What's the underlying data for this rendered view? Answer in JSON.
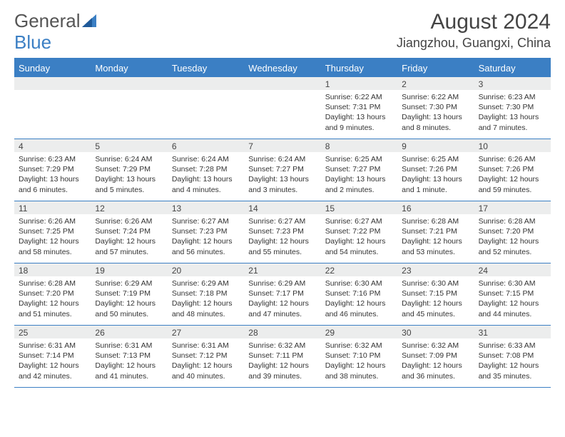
{
  "logo": {
    "text1": "General",
    "text2": "Blue"
  },
  "title": "August 2024",
  "location": "Jiangzhou, Guangxi, China",
  "dayNames": [
    "Sunday",
    "Monday",
    "Tuesday",
    "Wednesday",
    "Thursday",
    "Friday",
    "Saturday"
  ],
  "colors": {
    "headerBlue": "#3b7fc4",
    "rowGray": "#eceded",
    "text": "#333333",
    "background": "#ffffff"
  },
  "weeks": [
    [
      {
        "num": "",
        "lines": []
      },
      {
        "num": "",
        "lines": []
      },
      {
        "num": "",
        "lines": []
      },
      {
        "num": "",
        "lines": []
      },
      {
        "num": "1",
        "lines": [
          "Sunrise: 6:22 AM",
          "Sunset: 7:31 PM",
          "Daylight: 13 hours and 9 minutes."
        ]
      },
      {
        "num": "2",
        "lines": [
          "Sunrise: 6:22 AM",
          "Sunset: 7:30 PM",
          "Daylight: 13 hours and 8 minutes."
        ]
      },
      {
        "num": "3",
        "lines": [
          "Sunrise: 6:23 AM",
          "Sunset: 7:30 PM",
          "Daylight: 13 hours and 7 minutes."
        ]
      }
    ],
    [
      {
        "num": "4",
        "lines": [
          "Sunrise: 6:23 AM",
          "Sunset: 7:29 PM",
          "Daylight: 13 hours and 6 minutes."
        ]
      },
      {
        "num": "5",
        "lines": [
          "Sunrise: 6:24 AM",
          "Sunset: 7:29 PM",
          "Daylight: 13 hours and 5 minutes."
        ]
      },
      {
        "num": "6",
        "lines": [
          "Sunrise: 6:24 AM",
          "Sunset: 7:28 PM",
          "Daylight: 13 hours and 4 minutes."
        ]
      },
      {
        "num": "7",
        "lines": [
          "Sunrise: 6:24 AM",
          "Sunset: 7:27 PM",
          "Daylight: 13 hours and 3 minutes."
        ]
      },
      {
        "num": "8",
        "lines": [
          "Sunrise: 6:25 AM",
          "Sunset: 7:27 PM",
          "Daylight: 13 hours and 2 minutes."
        ]
      },
      {
        "num": "9",
        "lines": [
          "Sunrise: 6:25 AM",
          "Sunset: 7:26 PM",
          "Daylight: 13 hours and 1 minute."
        ]
      },
      {
        "num": "10",
        "lines": [
          "Sunrise: 6:26 AM",
          "Sunset: 7:26 PM",
          "Daylight: 12 hours and 59 minutes."
        ]
      }
    ],
    [
      {
        "num": "11",
        "lines": [
          "Sunrise: 6:26 AM",
          "Sunset: 7:25 PM",
          "Daylight: 12 hours and 58 minutes."
        ]
      },
      {
        "num": "12",
        "lines": [
          "Sunrise: 6:26 AM",
          "Sunset: 7:24 PM",
          "Daylight: 12 hours and 57 minutes."
        ]
      },
      {
        "num": "13",
        "lines": [
          "Sunrise: 6:27 AM",
          "Sunset: 7:23 PM",
          "Daylight: 12 hours and 56 minutes."
        ]
      },
      {
        "num": "14",
        "lines": [
          "Sunrise: 6:27 AM",
          "Sunset: 7:23 PM",
          "Daylight: 12 hours and 55 minutes."
        ]
      },
      {
        "num": "15",
        "lines": [
          "Sunrise: 6:27 AM",
          "Sunset: 7:22 PM",
          "Daylight: 12 hours and 54 minutes."
        ]
      },
      {
        "num": "16",
        "lines": [
          "Sunrise: 6:28 AM",
          "Sunset: 7:21 PM",
          "Daylight: 12 hours and 53 minutes."
        ]
      },
      {
        "num": "17",
        "lines": [
          "Sunrise: 6:28 AM",
          "Sunset: 7:20 PM",
          "Daylight: 12 hours and 52 minutes."
        ]
      }
    ],
    [
      {
        "num": "18",
        "lines": [
          "Sunrise: 6:28 AM",
          "Sunset: 7:20 PM",
          "Daylight: 12 hours and 51 minutes."
        ]
      },
      {
        "num": "19",
        "lines": [
          "Sunrise: 6:29 AM",
          "Sunset: 7:19 PM",
          "Daylight: 12 hours and 50 minutes."
        ]
      },
      {
        "num": "20",
        "lines": [
          "Sunrise: 6:29 AM",
          "Sunset: 7:18 PM",
          "Daylight: 12 hours and 48 minutes."
        ]
      },
      {
        "num": "21",
        "lines": [
          "Sunrise: 6:29 AM",
          "Sunset: 7:17 PM",
          "Daylight: 12 hours and 47 minutes."
        ]
      },
      {
        "num": "22",
        "lines": [
          "Sunrise: 6:30 AM",
          "Sunset: 7:16 PM",
          "Daylight: 12 hours and 46 minutes."
        ]
      },
      {
        "num": "23",
        "lines": [
          "Sunrise: 6:30 AM",
          "Sunset: 7:15 PM",
          "Daylight: 12 hours and 45 minutes."
        ]
      },
      {
        "num": "24",
        "lines": [
          "Sunrise: 6:30 AM",
          "Sunset: 7:15 PM",
          "Daylight: 12 hours and 44 minutes."
        ]
      }
    ],
    [
      {
        "num": "25",
        "lines": [
          "Sunrise: 6:31 AM",
          "Sunset: 7:14 PM",
          "Daylight: 12 hours and 42 minutes."
        ]
      },
      {
        "num": "26",
        "lines": [
          "Sunrise: 6:31 AM",
          "Sunset: 7:13 PM",
          "Daylight: 12 hours and 41 minutes."
        ]
      },
      {
        "num": "27",
        "lines": [
          "Sunrise: 6:31 AM",
          "Sunset: 7:12 PM",
          "Daylight: 12 hours and 40 minutes."
        ]
      },
      {
        "num": "28",
        "lines": [
          "Sunrise: 6:32 AM",
          "Sunset: 7:11 PM",
          "Daylight: 12 hours and 39 minutes."
        ]
      },
      {
        "num": "29",
        "lines": [
          "Sunrise: 6:32 AM",
          "Sunset: 7:10 PM",
          "Daylight: 12 hours and 38 minutes."
        ]
      },
      {
        "num": "30",
        "lines": [
          "Sunrise: 6:32 AM",
          "Sunset: 7:09 PM",
          "Daylight: 12 hours and 36 minutes."
        ]
      },
      {
        "num": "31",
        "lines": [
          "Sunrise: 6:33 AM",
          "Sunset: 7:08 PM",
          "Daylight: 12 hours and 35 minutes."
        ]
      }
    ]
  ]
}
